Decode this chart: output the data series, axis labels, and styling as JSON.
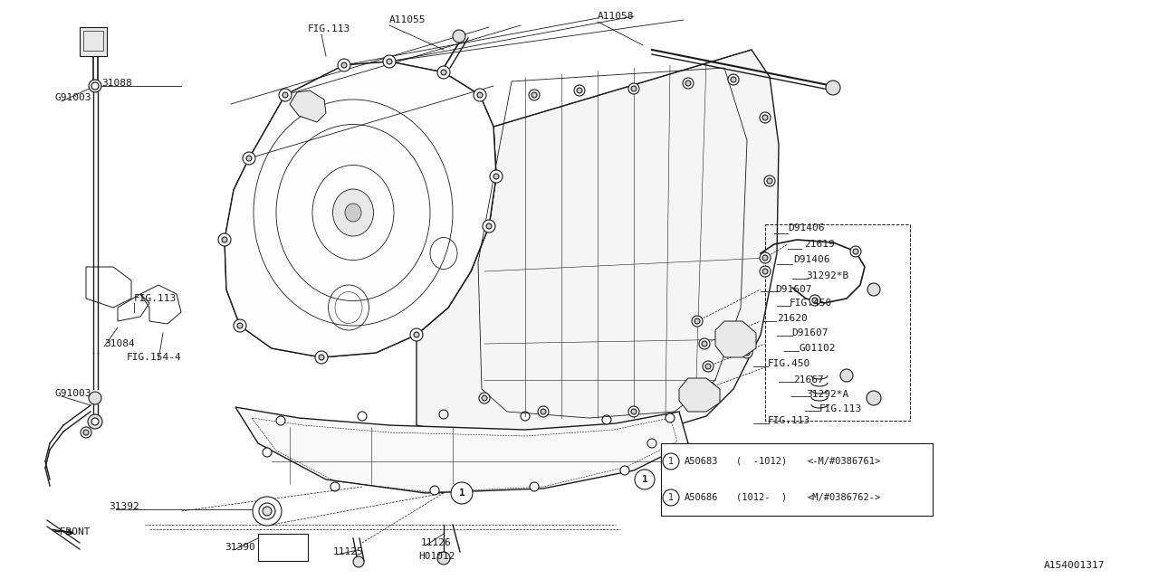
{
  "bg_color": "#ffffff",
  "line_color": "#1a1a1a",
  "diagram_id": "A154001317",
  "table_rows": [
    [
      "A50683",
      "(  -1012)",
      "<-M/#0386761>"
    ],
    [
      "A50686",
      "(1012-  )",
      "<M/#0386762->"
    ]
  ]
}
